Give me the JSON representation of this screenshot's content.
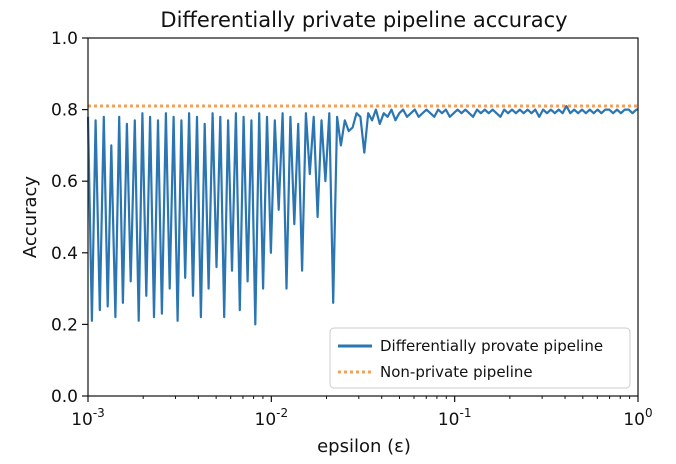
{
  "chart_data": {
    "type": "line",
    "title": "Differentially private pipeline accuracy",
    "xlabel": "epsilon (ε)",
    "ylabel": "Accuracy",
    "xscale": "log",
    "xlim": [
      0.001,
      1.0
    ],
    "ylim": [
      0.0,
      1.0
    ],
    "x_ticks": [
      {
        "value": 0.001,
        "base": "10",
        "exp": "-3"
      },
      {
        "value": 0.01,
        "base": "10",
        "exp": "-2"
      },
      {
        "value": 0.1,
        "base": "10",
        "exp": "-1"
      },
      {
        "value": 1.0,
        "base": "10",
        "exp": "0"
      }
    ],
    "y_ticks": [
      {
        "value": 0.0,
        "label": "0.0"
      },
      {
        "value": 0.2,
        "label": "0.2"
      },
      {
        "value": 0.4,
        "label": "0.4"
      },
      {
        "value": 0.6,
        "label": "0.6"
      },
      {
        "value": 0.8,
        "label": "0.8"
      },
      {
        "value": 1.0,
        "label": "1.0"
      }
    ],
    "grid": false,
    "legend_position": "lower-right",
    "series": [
      {
        "name": "Differentially provate pipeline",
        "color": "#2b76b2",
        "style": "solid",
        "x": [
          0.001,
          0.00105,
          0.0011,
          0.00116,
          0.00122,
          0.00128,
          0.00134,
          0.00141,
          0.00148,
          0.00155,
          0.00163,
          0.00171,
          0.0018,
          0.00189,
          0.00198,
          0.00208,
          0.00218,
          0.00229,
          0.00241,
          0.00253,
          0.00266,
          0.00279,
          0.00293,
          0.00308,
          0.00323,
          0.00339,
          0.00356,
          0.00374,
          0.00393,
          0.00413,
          0.00433,
          0.00455,
          0.00478,
          0.00502,
          0.00527,
          0.00553,
          0.00581,
          0.0061,
          0.00641,
          0.00673,
          0.00706,
          0.00742,
          0.00779,
          0.00818,
          0.00859,
          0.00902,
          0.00947,
          0.00995,
          0.01045,
          0.01097,
          0.01152,
          0.0121,
          0.0127,
          0.01334,
          0.01401,
          0.01471,
          0.01544,
          0.01622,
          0.01703,
          0.01788,
          0.01878,
          0.01972,
          0.0207,
          0.02174,
          0.02283,
          0.02397,
          0.02517,
          0.02643,
          0.02775,
          0.02914,
          0.0306,
          0.03213,
          0.03374,
          0.03543,
          0.0372,
          0.03906,
          0.04102,
          0.04307,
          0.04523,
          0.04749,
          0.04987,
          0.05236,
          0.05498,
          0.05773,
          0.06062,
          0.06366,
          0.06684,
          0.07019,
          0.0737,
          0.07739,
          0.08126,
          0.08533,
          0.0896,
          0.09408,
          0.09879,
          0.10373,
          0.10892,
          0.11437,
          0.1201,
          0.12611,
          0.13242,
          0.13904,
          0.146,
          0.15331,
          0.16098,
          0.16904,
          0.1775,
          0.18638,
          0.19571,
          0.2055,
          0.21579,
          0.22659,
          0.23793,
          0.24983,
          0.26234,
          0.27546,
          0.28925,
          0.30372,
          0.31892,
          0.33488,
          0.35164,
          0.36924,
          0.38772,
          0.40712,
          0.4275,
          0.44889,
          0.47136,
          0.49495,
          0.51972,
          0.54573,
          0.57304,
          0.60172,
          0.63183,
          0.66345,
          0.69666,
          0.73152,
          0.76813,
          0.80657,
          0.84694,
          0.88933,
          0.93384,
          0.98057,
          1.0
        ],
        "y": [
          0.78,
          0.21,
          0.77,
          0.24,
          0.78,
          0.25,
          0.7,
          0.22,
          0.78,
          0.26,
          0.76,
          0.32,
          0.77,
          0.21,
          0.79,
          0.28,
          0.78,
          0.22,
          0.77,
          0.23,
          0.79,
          0.3,
          0.78,
          0.21,
          0.77,
          0.33,
          0.79,
          0.28,
          0.78,
          0.22,
          0.76,
          0.3,
          0.79,
          0.36,
          0.78,
          0.22,
          0.77,
          0.35,
          0.79,
          0.24,
          0.78,
          0.32,
          0.77,
          0.2,
          0.79,
          0.3,
          0.78,
          0.4,
          0.77,
          0.52,
          0.79,
          0.3,
          0.78,
          0.48,
          0.76,
          0.35,
          0.79,
          0.62,
          0.78,
          0.5,
          0.77,
          0.6,
          0.79,
          0.26,
          0.78,
          0.7,
          0.77,
          0.74,
          0.75,
          0.79,
          0.78,
          0.68,
          0.79,
          0.77,
          0.8,
          0.76,
          0.79,
          0.78,
          0.8,
          0.77,
          0.79,
          0.8,
          0.78,
          0.79,
          0.8,
          0.78,
          0.79,
          0.8,
          0.79,
          0.78,
          0.8,
          0.79,
          0.8,
          0.78,
          0.79,
          0.8,
          0.79,
          0.8,
          0.79,
          0.78,
          0.8,
          0.79,
          0.8,
          0.79,
          0.8,
          0.79,
          0.78,
          0.8,
          0.79,
          0.8,
          0.79,
          0.8,
          0.79,
          0.8,
          0.79,
          0.8,
          0.78,
          0.8,
          0.79,
          0.8,
          0.79,
          0.8,
          0.79,
          0.81,
          0.79,
          0.8,
          0.79,
          0.8,
          0.79,
          0.8,
          0.79,
          0.8,
          0.79,
          0.8,
          0.8,
          0.79,
          0.8,
          0.79,
          0.8,
          0.8,
          0.79,
          0.8,
          0.8
        ]
      },
      {
        "name": "Non-private pipeline",
        "color": "#f5a05a",
        "style": "dotted",
        "x": [
          0.001,
          1.0
        ],
        "y": [
          0.81,
          0.81
        ]
      }
    ]
  }
}
